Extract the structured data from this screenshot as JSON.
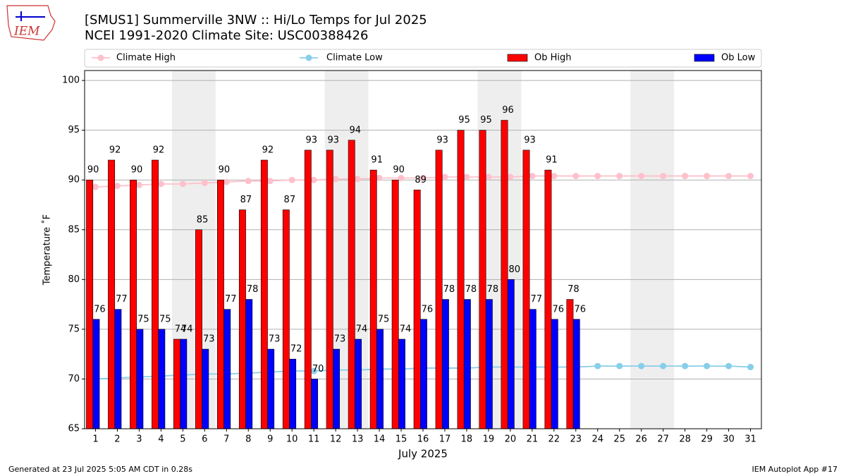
{
  "chart_data": {
    "type": "bar",
    "logo_text": "IEM",
    "title": "[SMUS1] Summerville 3NW :: Hi/Lo Temps for Jul 2025",
    "subtitle": "NCEI 1991-2020 Climate Site: USC00388426",
    "xlabel": "July 2025",
    "ylabel": "Temperature ˚F",
    "footer_left": "Generated at 23 Jul 2025 5:05 AM CDT in 0.28s",
    "footer_right": "IEM Autoplot App #17",
    "x": [
      1,
      2,
      3,
      4,
      5,
      6,
      7,
      8,
      9,
      10,
      11,
      12,
      13,
      14,
      15,
      16,
      17,
      18,
      19,
      20,
      21,
      22,
      23,
      24,
      25,
      26,
      27,
      28,
      29,
      30,
      31
    ],
    "xlim": [
      0.5,
      31.5
    ],
    "ylim": [
      65,
      101
    ],
    "yticks": [
      65,
      70,
      75,
      80,
      85,
      90,
      95,
      100
    ],
    "grid": true,
    "legend": "top",
    "shaded_days": [
      5,
      6,
      12,
      13,
      19,
      20,
      26,
      27
    ],
    "shade_color": "#eeeeee",
    "series": [
      {
        "name": "Climate High",
        "type": "line",
        "color": "#ffc0cb",
        "values": [
          89.3,
          89.4,
          89.5,
          89.6,
          89.6,
          89.7,
          89.8,
          89.9,
          89.9,
          90.0,
          90.0,
          90.1,
          90.1,
          90.2,
          90.2,
          90.2,
          90.3,
          90.3,
          90.3,
          90.3,
          90.4,
          90.4,
          90.4,
          90.4,
          90.4,
          90.4,
          90.4,
          90.4,
          90.4,
          90.4,
          90.4
        ]
      },
      {
        "name": "Climate Low",
        "type": "line",
        "color": "#87ceeb",
        "values": [
          70.0,
          70.1,
          70.2,
          70.3,
          70.4,
          70.5,
          70.5,
          70.6,
          70.7,
          70.8,
          70.8,
          70.9,
          70.9,
          71.0,
          71.0,
          71.1,
          71.1,
          71.1,
          71.2,
          71.2,
          71.2,
          71.2,
          71.2,
          71.3,
          71.3,
          71.3,
          71.3,
          71.3,
          71.3,
          71.3,
          71.2
        ]
      },
      {
        "name": "Ob High",
        "type": "bar",
        "color": "#ff0000",
        "values": [
          90,
          92,
          90,
          92,
          74,
          85,
          90,
          87,
          92,
          87,
          93,
          93,
          94,
          91,
          90,
          89,
          93,
          95,
          95,
          96,
          93,
          91,
          78,
          null,
          null,
          null,
          null,
          null,
          null,
          null,
          null
        ]
      },
      {
        "name": "Ob Low",
        "type": "bar",
        "color": "#0000ff",
        "values": [
          76,
          77,
          75,
          75,
          74,
          73,
          77,
          78,
          73,
          72,
          70,
          73,
          74,
          75,
          74,
          76,
          78,
          78,
          78,
          80,
          77,
          76,
          76,
          null,
          null,
          null,
          null,
          null,
          null,
          null,
          null
        ]
      }
    ]
  }
}
